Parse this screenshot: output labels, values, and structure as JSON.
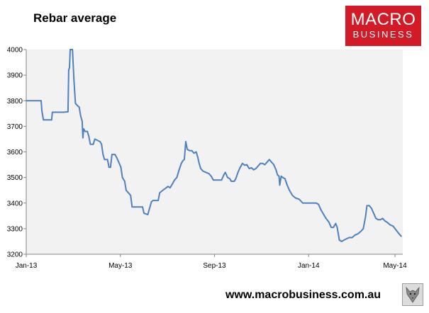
{
  "title": "Rebar average",
  "logo": {
    "line1": "MACRO",
    "line2": "BUSINESS",
    "color": "#d21b26",
    "icon": "macrobusiness-logo"
  },
  "footer": {
    "url": "www.macrobusiness.com.au",
    "badge_icon": "wolf-emblem-icon"
  },
  "chart_data": {
    "type": "line",
    "title": "Rebar average",
    "xlabel": "",
    "ylabel": "",
    "ylim": [
      3200,
      4000
    ],
    "yticks": [
      3200,
      3300,
      3400,
      3500,
      3600,
      3700,
      3800,
      3900,
      4000
    ],
    "xticks": [
      "Jan-13",
      "May-13",
      "Sep-13",
      "Jan-14",
      "May-14"
    ],
    "x_range": [
      "2013-01-01",
      "2014-05-21"
    ],
    "grid": false,
    "plot_background": "#f2f2f2",
    "series": [
      {
        "color": "#4f81bd",
        "points": [
          [
            "2013-01-01",
            3800
          ],
          [
            "2013-01-21",
            3800
          ],
          [
            "2013-01-22",
            3760
          ],
          [
            "2013-01-24",
            3725
          ],
          [
            "2013-02-04",
            3725
          ],
          [
            "2013-02-05",
            3755
          ],
          [
            "2013-02-20",
            3755
          ],
          [
            "2013-02-26",
            3757
          ],
          [
            "2013-02-27",
            3920
          ],
          [
            "2013-02-28",
            3930
          ],
          [
            "2013-03-01",
            4000
          ],
          [
            "2013-03-04",
            4000
          ],
          [
            "2013-03-06",
            3880
          ],
          [
            "2013-03-08",
            3790
          ],
          [
            "2013-03-11",
            3780
          ],
          [
            "2013-03-13",
            3775
          ],
          [
            "2013-03-15",
            3740
          ],
          [
            "2013-03-17",
            3720
          ],
          [
            "2013-03-18",
            3655
          ],
          [
            "2013-03-19",
            3690
          ],
          [
            "2013-03-21",
            3680
          ],
          [
            "2013-03-24",
            3680
          ],
          [
            "2013-03-26",
            3660
          ],
          [
            "2013-03-28",
            3630
          ],
          [
            "2013-04-01",
            3630
          ],
          [
            "2013-04-03",
            3650
          ],
          [
            "2013-04-10",
            3640
          ],
          [
            "2013-04-12",
            3630
          ],
          [
            "2013-04-14",
            3590
          ],
          [
            "2013-04-16",
            3570
          ],
          [
            "2013-04-20",
            3570
          ],
          [
            "2013-04-22",
            3540
          ],
          [
            "2013-04-24",
            3540
          ],
          [
            "2013-04-26",
            3590
          ],
          [
            "2013-04-30",
            3590
          ],
          [
            "2013-05-02",
            3580
          ],
          [
            "2013-05-05",
            3560
          ],
          [
            "2013-05-08",
            3540
          ],
          [
            "2013-05-10",
            3500
          ],
          [
            "2013-05-13",
            3485
          ],
          [
            "2013-05-15",
            3450
          ],
          [
            "2013-05-18",
            3440
          ],
          [
            "2013-05-21",
            3430
          ],
          [
            "2013-05-23",
            3385
          ],
          [
            "2013-06-01",
            3385
          ],
          [
            "2013-06-06",
            3385
          ],
          [
            "2013-06-08",
            3360
          ],
          [
            "2013-06-13",
            3355
          ],
          [
            "2013-06-16",
            3385
          ],
          [
            "2013-06-18",
            3405
          ],
          [
            "2013-06-20",
            3410
          ],
          [
            "2013-06-27",
            3410
          ],
          [
            "2013-06-29",
            3440
          ],
          [
            "2013-07-01",
            3445
          ],
          [
            "2013-07-04",
            3452
          ],
          [
            "2013-07-07",
            3458
          ],
          [
            "2013-07-10",
            3465
          ],
          [
            "2013-07-13",
            3460
          ],
          [
            "2013-07-16",
            3475
          ],
          [
            "2013-07-19",
            3490
          ],
          [
            "2013-07-22",
            3500
          ],
          [
            "2013-07-25",
            3530
          ],
          [
            "2013-07-28",
            3555
          ],
          [
            "2013-07-30",
            3565
          ],
          [
            "2013-08-01",
            3570
          ],
          [
            "2013-08-03",
            3640
          ],
          [
            "2013-08-05",
            3610
          ],
          [
            "2013-08-08",
            3605
          ],
          [
            "2013-08-11",
            3605
          ],
          [
            "2013-08-14",
            3595
          ],
          [
            "2013-08-17",
            3600
          ],
          [
            "2013-08-19",
            3580
          ],
          [
            "2013-08-21",
            3555
          ],
          [
            "2013-08-23",
            3535
          ],
          [
            "2013-08-26",
            3525
          ],
          [
            "2013-08-30",
            3520
          ],
          [
            "2013-09-03",
            3515
          ],
          [
            "2013-09-06",
            3505
          ],
          [
            "2013-09-09",
            3490
          ],
          [
            "2013-09-20",
            3490
          ],
          [
            "2013-09-23",
            3510
          ],
          [
            "2013-09-25",
            3520
          ],
          [
            "2013-09-28",
            3500
          ],
          [
            "2013-10-01",
            3495
          ],
          [
            "2013-10-03",
            3485
          ],
          [
            "2013-10-07",
            3485
          ],
          [
            "2013-10-09",
            3495
          ],
          [
            "2013-10-12",
            3520
          ],
          [
            "2013-10-15",
            3540
          ],
          [
            "2013-10-18",
            3555
          ],
          [
            "2013-10-21",
            3548
          ],
          [
            "2013-10-24",
            3550
          ],
          [
            "2013-10-27",
            3535
          ],
          [
            "2013-10-30",
            3538
          ],
          [
            "2013-11-02",
            3530
          ],
          [
            "2013-11-05",
            3535
          ],
          [
            "2013-11-08",
            3545
          ],
          [
            "2013-11-11",
            3555
          ],
          [
            "2013-11-14",
            3555
          ],
          [
            "2013-11-17",
            3550
          ],
          [
            "2013-11-20",
            3560
          ],
          [
            "2013-11-23",
            3570
          ],
          [
            "2013-11-26",
            3560
          ],
          [
            "2013-11-29",
            3550
          ],
          [
            "2013-12-02",
            3530
          ],
          [
            "2013-12-04",
            3510
          ],
          [
            "2013-12-06",
            3505
          ],
          [
            "2013-12-07",
            3470
          ],
          [
            "2013-12-09",
            3505
          ],
          [
            "2013-12-11",
            3500
          ],
          [
            "2013-12-14",
            3495
          ],
          [
            "2013-12-17",
            3470
          ],
          [
            "2013-12-20",
            3450
          ],
          [
            "2013-12-24",
            3430
          ],
          [
            "2013-12-28",
            3420
          ],
          [
            "2014-01-02",
            3415
          ],
          [
            "2014-01-07",
            3400
          ],
          [
            "2014-01-25",
            3400
          ],
          [
            "2014-01-28",
            3395
          ],
          [
            "2014-01-31",
            3375
          ],
          [
            "2014-02-04",
            3355
          ],
          [
            "2014-02-07",
            3340
          ],
          [
            "2014-02-11",
            3325
          ],
          [
            "2014-02-14",
            3305
          ],
          [
            "2014-02-17",
            3305
          ],
          [
            "2014-02-20",
            3320
          ],
          [
            "2014-02-22",
            3305
          ],
          [
            "2014-02-25",
            3255
          ],
          [
            "2014-02-28",
            3250
          ],
          [
            "2014-03-05",
            3258
          ],
          [
            "2014-03-10",
            3265
          ],
          [
            "2014-03-14",
            3265
          ],
          [
            "2014-03-18",
            3275
          ],
          [
            "2014-03-22",
            3280
          ],
          [
            "2014-03-26",
            3290
          ],
          [
            "2014-03-29",
            3300
          ],
          [
            "2014-04-01",
            3345
          ],
          [
            "2014-04-03",
            3390
          ],
          [
            "2014-04-06",
            3390
          ],
          [
            "2014-04-09",
            3380
          ],
          [
            "2014-04-12",
            3360
          ],
          [
            "2014-04-15",
            3340
          ],
          [
            "2014-04-18",
            3335
          ],
          [
            "2014-04-21",
            3335
          ],
          [
            "2014-04-24",
            3340
          ],
          [
            "2014-04-27",
            3330
          ],
          [
            "2014-04-30",
            3325
          ],
          [
            "2014-05-04",
            3315
          ],
          [
            "2014-05-08",
            3310
          ],
          [
            "2014-05-12",
            3295
          ],
          [
            "2014-05-16",
            3280
          ],
          [
            "2014-05-19",
            3270
          ]
        ]
      }
    ]
  }
}
